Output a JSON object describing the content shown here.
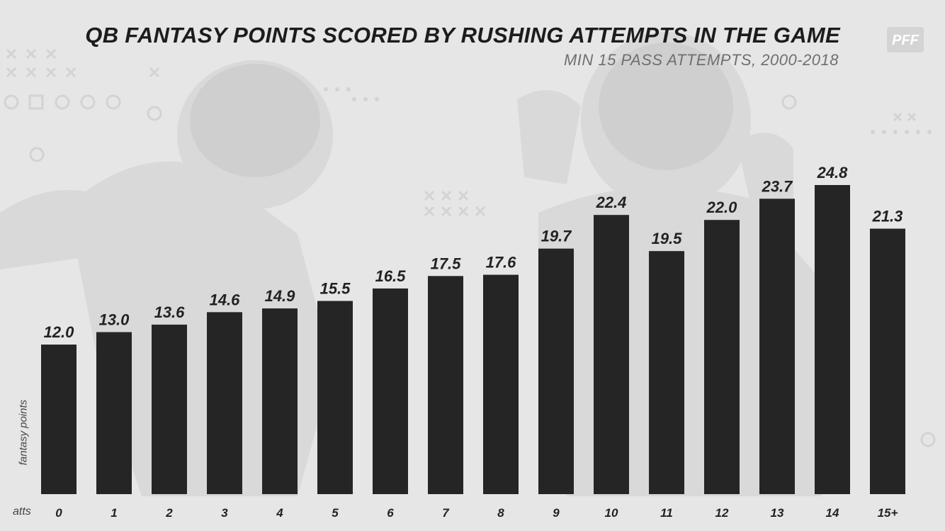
{
  "chart_data": {
    "type": "bar",
    "title": "QB FANTASY POINTS SCORED BY RUSHING ATTEMPTS IN THE GAME",
    "subtitle": "MIN 15 PASS ATTEMPTS, 2000-2018",
    "xlabel": "atts",
    "ylabel": "fantasy points",
    "categories": [
      "0",
      "1",
      "2",
      "3",
      "4",
      "5",
      "6",
      "7",
      "8",
      "9",
      "10",
      "11",
      "12",
      "13",
      "14",
      "15+"
    ],
    "values": [
      12.0,
      13.0,
      13.6,
      14.6,
      14.9,
      15.5,
      16.5,
      17.5,
      17.6,
      19.7,
      22.4,
      19.5,
      22.0,
      23.7,
      24.8,
      21.3
    ],
    "value_labels": [
      "12.0",
      "13.0",
      "13.6",
      "14.6",
      "14.9",
      "15.5",
      "16.5",
      "17.5",
      "17.6",
      "19.7",
      "22.4",
      "19.5",
      "22.0",
      "23.7",
      "24.8",
      "21.3"
    ],
    "ylim": [
      0,
      24.8
    ],
    "grid": false,
    "bar_color": "#252525"
  },
  "brand": {
    "logo_text": "PFF",
    "logo_color": "#ffffff"
  }
}
